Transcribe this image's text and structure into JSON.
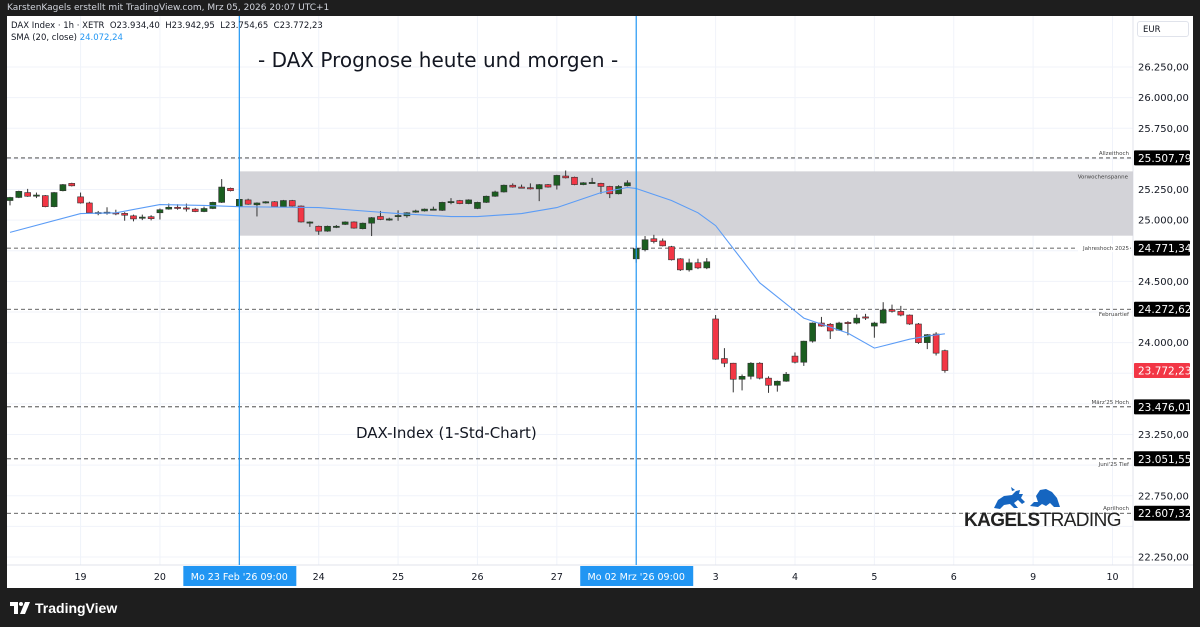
{
  "header": {
    "caption": "KarstenKagels erstellt mit TradingView.com, Mrz 05, 2026 20:07 UTC+1"
  },
  "legend": {
    "symbol_line": "DAX Index · 1h · XETR  O23.934,40  H23.942,95  L23.754,65  C23.772,23",
    "sma_label": "SMA (20, close)",
    "sma_value": "24.072,24"
  },
  "annotations": {
    "title": "- DAX Prognose heute und morgen -",
    "subtitle": "DAX-Index (1-Std-Chart)"
  },
  "price_axis": {
    "currency": "EUR"
  },
  "logo": {
    "part1": "KAGELS",
    "part2": "TRADING"
  },
  "footer": {
    "brand": "TradingView"
  },
  "colors": {
    "up": "#1b5e20",
    "down": "#f23645",
    "sma": "#5b9cf6",
    "marker": "#2196f3",
    "range_box": "#d1d1d6",
    "level_label_bg": "#000000"
  },
  "chart_data": {
    "type": "candlestick",
    "symbol": "DAX Index",
    "interval": "1h",
    "exchange": "XETR",
    "ylim": [
      22150,
      26450
    ],
    "y_ticks": [
      26250,
      26000,
      25750,
      25500,
      25250,
      25000,
      24750,
      24500,
      24250,
      24000,
      23750,
      23500,
      23250,
      23000,
      22750,
      22500,
      22250
    ],
    "grid": true,
    "x_ticks": [
      {
        "bar": 8,
        "label": "19"
      },
      {
        "bar": 17,
        "label": "20"
      },
      {
        "bar": 35,
        "label": "24"
      },
      {
        "bar": 44,
        "label": "25"
      },
      {
        "bar": 53,
        "label": "26"
      },
      {
        "bar": 62,
        "label": "27"
      },
      {
        "bar": 80,
        "label": "3"
      },
      {
        "bar": 89,
        "label": "4"
      },
      {
        "bar": 98,
        "label": "5"
      },
      {
        "bar": 107,
        "label": "6"
      },
      {
        "bar": 116,
        "label": "9"
      },
      {
        "bar": 125,
        "label": "10"
      }
    ],
    "markers": [
      {
        "bar": 26,
        "label": "Mo 23 Feb '26   09:00"
      },
      {
        "bar": 71,
        "label": "Mo 02 Mrz '26   09:00"
      }
    ],
    "range_box": {
      "label": "Vorwochenspanne",
      "from_bar": 26,
      "high": 25398,
      "low": 24873
    },
    "levels": [
      {
        "label": "Allzeithoch",
        "price": 25507.79
      },
      {
        "label": "Jahreshoch 2025",
        "price": 24771.34
      },
      {
        "label": "Februartief",
        "price": 24272.62
      },
      {
        "label": "März'25 Hoch",
        "price": 23476.01
      },
      {
        "label": "Juni'25 Tief",
        "price": 23051.55
      },
      {
        "label": "Aprilhoch",
        "price": 22607.32
      }
    ],
    "last_price": 23772.23,
    "sma": {
      "name": "SMA (20, close)",
      "points": [
        [
          0,
          24900
        ],
        [
          8,
          25053
        ],
        [
          12,
          25060
        ],
        [
          17,
          25127
        ],
        [
          22,
          25120
        ],
        [
          26,
          25110
        ],
        [
          35,
          25102
        ],
        [
          44,
          25053
        ],
        [
          50,
          25029
        ],
        [
          53,
          25029
        ],
        [
          58,
          25053
        ],
        [
          62,
          25102
        ],
        [
          67,
          25225
        ],
        [
          70,
          25266
        ],
        [
          71,
          25258
        ],
        [
          75,
          25160
        ],
        [
          78,
          25060
        ],
        [
          80,
          24955
        ],
        [
          85,
          24488
        ],
        [
          89,
          24258
        ],
        [
          90,
          24200
        ],
        [
          95,
          24078
        ],
        [
          98,
          23955
        ],
        [
          102,
          24028
        ],
        [
          104,
          24053
        ],
        [
          106,
          24072
        ]
      ]
    },
    "candles": [
      [
        25160,
        25190,
        25120,
        25185
      ],
      [
        25185,
        25240,
        25180,
        25235
      ],
      [
        25225,
        25255,
        25190,
        25195
      ],
      [
        25200,
        25225,
        25180,
        25205
      ],
      [
        25200,
        25205,
        25105,
        25110
      ],
      [
        25110,
        25230,
        25105,
        25225
      ],
      [
        25240,
        25295,
        25235,
        25290
      ],
      [
        25300,
        25305,
        25275,
        25280
      ],
      [
        25190,
        25225,
        25135,
        25140
      ],
      [
        25140,
        25150,
        25055,
        25060
      ],
      [
        25058,
        25075,
        25040,
        25062
      ],
      [
        25055,
        25105,
        25045,
        25065
      ],
      [
        25060,
        25085,
        25040,
        25058
      ],
      [
        25055,
        25065,
        24995,
        25040
      ],
      [
        25035,
        25045,
        24990,
        25010
      ],
      [
        25015,
        25045,
        25000,
        25025
      ],
      [
        25028,
        25040,
        24998,
        25012
      ],
      [
        25060,
        25095,
        25005,
        25085
      ],
      [
        25090,
        25135,
        25085,
        25105
      ],
      [
        25105,
        25130,
        25085,
        25095
      ],
      [
        25100,
        25135,
        25070,
        25098
      ],
      [
        25090,
        25100,
        25065,
        25070
      ],
      [
        25070,
        25110,
        25065,
        25095
      ],
      [
        25095,
        25150,
        25090,
        25145
      ],
      [
        25145,
        25335,
        25140,
        25270
      ],
      [
        25260,
        25265,
        25235,
        25240
      ],
      [
        25110,
        25175,
        25105,
        25170
      ],
      [
        25165,
        25175,
        25125,
        25130
      ],
      [
        25125,
        25145,
        25030,
        25140
      ],
      [
        25140,
        25155,
        25135,
        25150
      ],
      [
        25150,
        25155,
        25105,
        25110
      ],
      [
        25110,
        25165,
        25105,
        25160
      ],
      [
        25160,
        25165,
        25110,
        25115
      ],
      [
        25115,
        25120,
        24980,
        24985
      ],
      [
        24985,
        24990,
        24945,
        24985
      ],
      [
        24950,
        24955,
        24880,
        24910
      ],
      [
        24910,
        24955,
        24905,
        24950
      ],
      [
        24948,
        24960,
        24935,
        24950
      ],
      [
        24965,
        24990,
        24960,
        24985
      ],
      [
        24985,
        24990,
        24930,
        24935
      ],
      [
        24930,
        24980,
        24925,
        24975
      ],
      [
        24975,
        25025,
        24870,
        25020
      ],
      [
        25030,
        25075,
        25000,
        25005
      ],
      [
        25005,
        25020,
        24995,
        25010
      ],
      [
        25035,
        25080,
        24995,
        25038
      ],
      [
        25035,
        25065,
        25020,
        25060
      ],
      [
        25065,
        25085,
        25060,
        25075
      ],
      [
        25075,
        25095,
        25070,
        25090
      ],
      [
        25088,
        25110,
        25080,
        25090
      ],
      [
        25080,
        25150,
        25075,
        25145
      ],
      [
        25150,
        25180,
        25130,
        25152
      ],
      [
        25160,
        25165,
        25130,
        25135
      ],
      [
        25135,
        25170,
        25130,
        25165
      ],
      [
        25095,
        25150,
        25090,
        25145
      ],
      [
        25145,
        25200,
        25140,
        25195
      ],
      [
        25195,
        25240,
        25190,
        25230
      ],
      [
        25230,
        25290,
        25225,
        25285
      ],
      [
        25285,
        25300,
        25265,
        25270
      ],
      [
        25270,
        25290,
        25262,
        25268
      ],
      [
        25265,
        25300,
        25250,
        25255
      ],
      [
        25255,
        25295,
        25155,
        25290
      ],
      [
        25290,
        25295,
        25265,
        25270
      ],
      [
        25285,
        25370,
        25250,
        25365
      ],
      [
        25360,
        25405,
        25340,
        25345
      ],
      [
        25350,
        25355,
        25285,
        25290
      ],
      [
        25290,
        25310,
        25285,
        25305
      ],
      [
        25305,
        25345,
        25300,
        25308
      ],
      [
        25300,
        25305,
        25215,
        25275
      ],
      [
        25275,
        25280,
        25180,
        25215
      ],
      [
        25215,
        25285,
        25210,
        25275
      ],
      [
        25280,
        25325,
        25275,
        25305
      ],
      [
        24684,
        24790,
        24652,
        24766
      ],
      [
        24758,
        24870,
        24745,
        24840
      ],
      [
        24848,
        24880,
        24810,
        24825
      ],
      [
        24830,
        24850,
        24785,
        24790
      ],
      [
        24783,
        24790,
        24670,
        24676
      ],
      [
        24684,
        24690,
        24585,
        24594
      ],
      [
        24594,
        24685,
        24580,
        24652
      ],
      [
        24652,
        24685,
        24600,
        24610
      ],
      [
        24610,
        24690,
        24600,
        24660
      ],
      [
        24193,
        24225,
        23860,
        23865
      ],
      [
        23870,
        23955,
        23800,
        23832
      ],
      [
        23832,
        23835,
        23594,
        23701
      ],
      [
        23701,
        23740,
        23610,
        23725
      ],
      [
        23725,
        23840,
        23700,
        23832
      ],
      [
        23832,
        23840,
        23700,
        23710
      ],
      [
        23710,
        23725,
        23590,
        23652
      ],
      [
        23652,
        23690,
        23600,
        23685
      ],
      [
        23685,
        23760,
        23680,
        23742
      ],
      [
        23890,
        23920,
        23830,
        23840
      ],
      [
        23840,
        24015,
        23810,
        24012
      ],
      [
        24012,
        24165,
        24000,
        24160
      ],
      [
        24160,
        24210,
        24130,
        24135
      ],
      [
        24150,
        24160,
        24030,
        24095
      ],
      [
        24102,
        24170,
        24095,
        24160
      ],
      [
        24165,
        24175,
        24060,
        24155
      ],
      [
        24160,
        24230,
        24150,
        24200
      ],
      [
        24210,
        24235,
        24185,
        24208
      ],
      [
        24135,
        24170,
        24040,
        24160
      ],
      [
        24160,
        24330,
        24155,
        24266
      ],
      [
        24270,
        24310,
        24245,
        24255
      ],
      [
        24255,
        24300,
        24215,
        24225
      ],
      [
        24225,
        24230,
        24145,
        24152
      ],
      [
        24152,
        24160,
        23990,
        24000
      ],
      [
        24000,
        24070,
        23947,
        24065
      ],
      [
        24070,
        24085,
        23895,
        23914
      ],
      [
        23934.4,
        23942.95,
        23754.65,
        23772.23
      ]
    ]
  }
}
